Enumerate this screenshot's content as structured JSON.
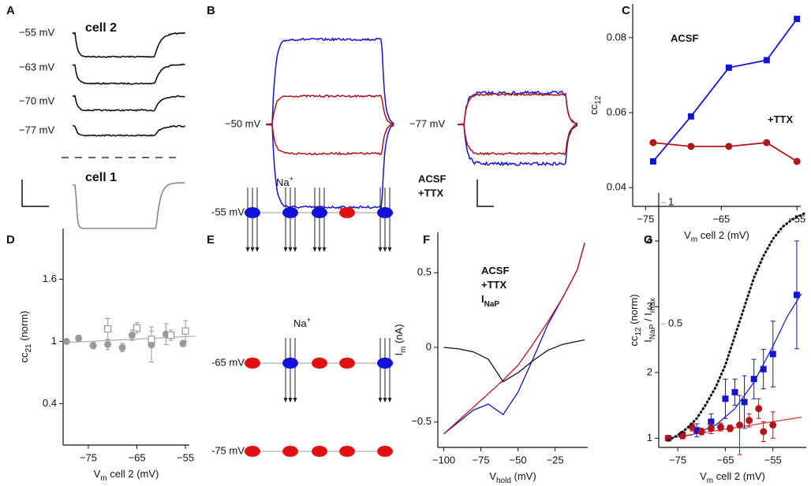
{
  "panel_a": {
    "letter": "A",
    "trace_labels": [
      "−55 mV",
      "−63 mV",
      "−70 mV",
      "−77 mV"
    ],
    "cell2": "cell 2",
    "cell1": "cell 1"
  },
  "panel_b": {
    "letter": "B",
    "labels": [
      "−50 mV",
      "−77 mV"
    ],
    "legend": [
      {
        "name": "ACSF",
        "color": "#1414d2"
      },
      {
        "name": "+TTX",
        "color": "#b4141e"
      }
    ]
  },
  "panel_e": {
    "letter": "E",
    "ion": {
      "text": "Na",
      "sup": "+"
    },
    "open_color": "#1010d8",
    "closed_color": "#e01010",
    "rows": [
      {
        "label": "-55 mV",
        "channels": [
          "open",
          "open",
          "open",
          "closed",
          "open"
        ]
      },
      {
        "label": "-65 mV",
        "channels": [
          "closed",
          "open",
          "closed",
          "closed",
          "open"
        ]
      },
      {
        "label": "-75 mV",
        "channels": [
          "closed",
          "closed",
          "closed",
          "closed",
          "closed"
        ]
      }
    ]
  },
  "chart_data": [
    {
      "type": "line",
      "panel": "C",
      "legend": "inline",
      "xlabel": [
        {
          "text": "V"
        },
        {
          "sub": "m"
        },
        {
          "text": " cell 2 (mV)"
        }
      ],
      "ylabel": [
        {
          "text": "cc"
        },
        {
          "sub": "12"
        }
      ],
      "x": [
        -74,
        -69,
        -64,
        -59,
        -55
      ],
      "series": [
        {
          "name": "ACSF",
          "color": "#1414d2",
          "marker": "square",
          "values": [
            0.047,
            0.059,
            0.072,
            0.074,
            0.085
          ]
        },
        {
          "name": "+TTX",
          "color": "#b4141e",
          "marker": "circle",
          "values": [
            0.052,
            0.051,
            0.051,
            0.052,
            0.047
          ]
        }
      ],
      "xlim": [
        -76.7,
        -54.5
      ],
      "xticks": [
        {
          "value": -75,
          "label": "−75"
        },
        {
          "value": -65,
          "label": "−65"
        },
        {
          "value": -55,
          "label": "−55"
        }
      ],
      "ylim": [
        0.035,
        0.089
      ],
      "yticks": [
        0.04,
        0.06,
        0.08
      ]
    },
    {
      "type": "scatter",
      "panel": "D",
      "xlabel": [
        {
          "text": "V"
        },
        {
          "sub": "m"
        },
        {
          "text": " cell 2 (mV)"
        }
      ],
      "ylabel": [
        {
          "text": "cc"
        },
        {
          "sub": "21"
        },
        {
          "text": " (norm)"
        }
      ],
      "series": [
        {
          "color": "#999999",
          "marker": "circle",
          "x": [
            -79.5,
            -77,
            -74,
            -71,
            -68,
            -66,
            -62,
            -59,
            -55.5
          ],
          "values": [
            1.0,
            1.03,
            0.96,
            0.97,
            0.94,
            1.06,
            0.97,
            1.07,
            0.98
          ],
          "errors": [
            0.02,
            0.03,
            0.03,
            0.05,
            0.04,
            0.05,
            0.17,
            0.1,
            0.03
          ]
        },
        {
          "color": "#999999",
          "marker": "open-square",
          "x": [
            -71,
            -65,
            -62,
            -58,
            -55
          ],
          "values": [
            1.12,
            1.13,
            1.02,
            1.06,
            1.1
          ],
          "errors": [
            0.1,
            0.05,
            0.08,
            0.05,
            0.1
          ]
        }
      ],
      "fits": [
        {
          "color": "#aaaaaa",
          "x": [
            -79,
            -53
          ],
          "values": [
            0.99,
            1.05
          ]
        }
      ],
      "xlim": [
        -80.2,
        -54.2
      ],
      "xticks": [
        {
          "value": -75,
          "label": "−75"
        },
        {
          "value": -65,
          "label": "−65"
        },
        {
          "value": -55,
          "label": "−55"
        }
      ],
      "ylim": [
        0,
        2.09
      ],
      "yticks": [
        0.4,
        1,
        1.6
      ]
    },
    {
      "type": "line",
      "panel": "F",
      "legend": "upper left",
      "xlabel": [
        {
          "text": "V"
        },
        {
          "sub": "hold"
        },
        {
          "text": " (mV)"
        }
      ],
      "ylabel": [
        {
          "text": "I"
        },
        {
          "sub": "m"
        },
        {
          "text": " (nA)"
        }
      ],
      "x": [
        -100,
        -90,
        -80,
        -70,
        -60,
        -50,
        -40,
        -30,
        -20,
        -10,
        -5
      ],
      "series": [
        {
          "name": "ACSF",
          "color": "#1414d2",
          "values": [
            -0.58,
            -0.5,
            -0.42,
            -0.38,
            -0.45,
            -0.3,
            -0.08,
            0.15,
            0.33,
            0.52,
            0.7
          ]
        },
        {
          "name": "+TTX",
          "color": "#b4141e",
          "values": [
            -0.58,
            -0.49,
            -0.4,
            -0.31,
            -0.22,
            -0.12,
            0.02,
            0.17,
            0.33,
            0.52,
            0.7
          ]
        },
        {
          "name": "I",
          "name_sub": "NaP",
          "color": "#111111",
          "values": [
            0,
            -0.01,
            -0.03,
            -0.08,
            -0.23,
            -0.17,
            -0.09,
            -0.02,
            0.02,
            0.04,
            0.05
          ]
        }
      ],
      "xlim": [
        -104,
        -3
      ],
      "xticks": [
        {
          "value": -100,
          "label": "−100"
        },
        {
          "value": -75,
          "label": "−75"
        },
        {
          "value": -50,
          "label": "−50"
        },
        {
          "value": -25,
          "label": "−25"
        }
      ],
      "ylim": [
        -0.67,
        0.77
      ],
      "yticks": [
        {
          "value": -0.5,
          "label": "−0.5"
        },
        0,
        0.5
      ]
    },
    {
      "type": "scatter",
      "panel": "G",
      "xlabel": [
        {
          "text": "V"
        },
        {
          "sub": "m"
        },
        {
          "text": " cell 2 (mV)"
        }
      ],
      "ylabel": [
        {
          "text": "cc"
        },
        {
          "sub": "12"
        },
        {
          "text": " (norm)"
        }
      ],
      "y2label": [
        {
          "text": "I"
        },
        {
          "sub": "NaP"
        },
        {
          "text": " / I"
        },
        {
          "sub": "max"
        }
      ],
      "y2color": "#999999",
      "series": [
        {
          "color": "#1414d2",
          "marker": "square",
          "x": [
            -77,
            -74,
            -71,
            -68,
            -65,
            -63,
            -61,
            -59,
            -57,
            -55,
            -50
          ],
          "values": [
            1.0,
            1.05,
            1.12,
            1.25,
            1.6,
            1.7,
            1.55,
            1.9,
            2.05,
            2.28,
            3.18
          ],
          "errors": [
            0.02,
            0.05,
            0.1,
            0.12,
            0.3,
            0.2,
            0.4,
            0.3,
            0.3,
            0.5,
            0.82
          ]
        },
        {
          "color": "#b4141e",
          "marker": "circle",
          "x": [
            -77,
            -74,
            -72,
            -70,
            -68,
            -66,
            -64,
            -62,
            -60,
            -58,
            -57,
            -55
          ],
          "values": [
            1.0,
            1.04,
            1.17,
            1.1,
            1.15,
            1.17,
            1.15,
            1.2,
            1.27,
            1.45,
            1.1,
            1.2
          ],
          "errors": [
            0.02,
            0.05,
            0.06,
            0.05,
            0.08,
            0.06,
            0.05,
            0.45,
            0.1,
            0.15,
            0.15,
            0.2
          ]
        },
        {
          "color": "#111111",
          "dash": "dotted",
          "axis": "y2",
          "x": [
            -77,
            -75,
            -73,
            -71,
            -69,
            -67,
            -65,
            -63,
            -61,
            -59,
            -57,
            -55,
            -53,
            -51,
            -49,
            -48
          ],
          "values": [
            0.02,
            0.04,
            0.07,
            0.11,
            0.17,
            0.24,
            0.33,
            0.45,
            0.57,
            0.69,
            0.78,
            0.85,
            0.9,
            0.93,
            0.95,
            0.96
          ]
        }
      ],
      "fits": [
        {
          "color": "#1414d2",
          "x": [
            -77,
            -72,
            -67,
            -63,
            -59,
            -55,
            -52,
            -49
          ],
          "values": [
            1.0,
            1.05,
            1.2,
            1.45,
            1.85,
            2.4,
            2.85,
            3.2
          ]
        },
        {
          "color": "#e03030",
          "x": [
            -77,
            -49
          ],
          "values": [
            1.0,
            1.32
          ]
        }
      ],
      "xlim": [
        -79,
        -48
      ],
      "xticks": [
        {
          "value": -75,
          "label": "−75"
        },
        {
          "value": -65,
          "label": "−65"
        },
        {
          "value": -55,
          "label": "−55"
        }
      ],
      "ylim": [
        0.86,
        4.73
      ],
      "yticks": [
        1,
        2,
        3,
        4
      ],
      "y2lim": [
        -0.01,
        1.04
      ],
      "y2ticks": [
        0.5,
        1
      ]
    }
  ]
}
